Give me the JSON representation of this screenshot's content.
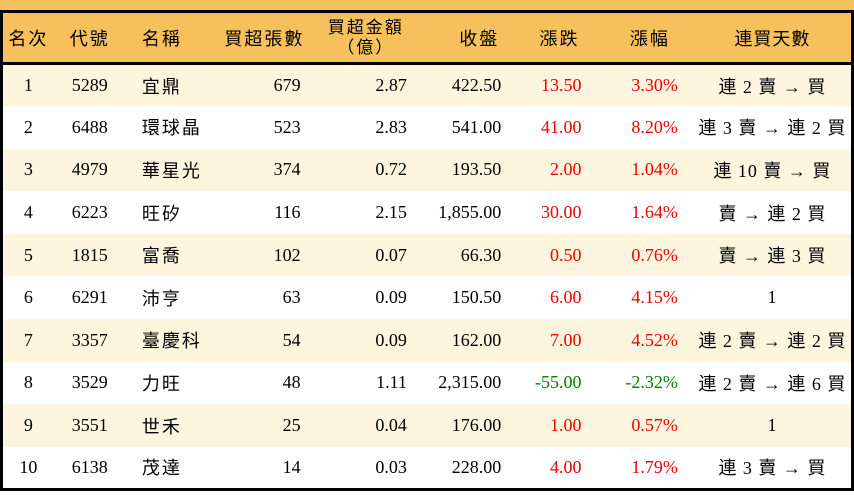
{
  "colors": {
    "header_bg": "#F6C05C",
    "row_alt_bg": "#FDF5DE",
    "row_bg": "#FFFFFF",
    "border": "#000000",
    "up_red": "#EE0000",
    "down_green": "#008000",
    "text": "#000000"
  },
  "table": {
    "headers": {
      "rank": "名次",
      "code": "代號",
      "name": "名稱",
      "volume": "買超張數",
      "amount_line1": "買超金額",
      "amount_line2": "（億）",
      "close": "收盤",
      "change": "漲跌",
      "change_pct": "漲幅",
      "streak": "連買天數"
    }
  },
  "chart_data": {
    "type": "table",
    "title": "",
    "columns": [
      "名次",
      "代號",
      "名稱",
      "買超張數",
      "買超金額（億）",
      "收盤",
      "漲跌",
      "漲幅",
      "連買天數"
    ],
    "rows": [
      {
        "rank": "1",
        "code": "5289",
        "name": "宜鼎",
        "volume": "679",
        "amount": "2.87",
        "close": "422.50",
        "change": "13.50",
        "change_pct": "3.30%",
        "streak": "連 2 賣 → 買",
        "direction": "up"
      },
      {
        "rank": "2",
        "code": "6488",
        "name": "環球晶",
        "volume": "523",
        "amount": "2.83",
        "close": "541.00",
        "change": "41.00",
        "change_pct": "8.20%",
        "streak": "連 3 賣 → 連 2 買",
        "direction": "up"
      },
      {
        "rank": "3",
        "code": "4979",
        "name": "華星光",
        "volume": "374",
        "amount": "0.72",
        "close": "193.50",
        "change": "2.00",
        "change_pct": "1.04%",
        "streak": "連 10 賣 → 買",
        "direction": "up"
      },
      {
        "rank": "4",
        "code": "6223",
        "name": "旺矽",
        "volume": "116",
        "amount": "2.15",
        "close": "1,855.00",
        "change": "30.00",
        "change_pct": "1.64%",
        "streak": "賣 → 連 2 買",
        "direction": "up"
      },
      {
        "rank": "5",
        "code": "1815",
        "name": "富喬",
        "volume": "102",
        "amount": "0.07",
        "close": "66.30",
        "change": "0.50",
        "change_pct": "0.76%",
        "streak": "賣 → 連 3 買",
        "direction": "up"
      },
      {
        "rank": "6",
        "code": "6291",
        "name": "沛亨",
        "volume": "63",
        "amount": "0.09",
        "close": "150.50",
        "change": "6.00",
        "change_pct": "4.15%",
        "streak": "1",
        "direction": "up"
      },
      {
        "rank": "7",
        "code": "3357",
        "name": "臺慶科",
        "volume": "54",
        "amount": "0.09",
        "close": "162.00",
        "change": "7.00",
        "change_pct": "4.52%",
        "streak": "連 2 賣 → 連 2 買",
        "direction": "up"
      },
      {
        "rank": "8",
        "code": "3529",
        "name": "力旺",
        "volume": "48",
        "amount": "1.11",
        "close": "2,315.00",
        "change": "-55.00",
        "change_pct": "-2.32%",
        "streak": "連 2 賣 → 連 6 買",
        "direction": "down"
      },
      {
        "rank": "9",
        "code": "3551",
        "name": "世禾",
        "volume": "25",
        "amount": "0.04",
        "close": "176.00",
        "change": "1.00",
        "change_pct": "0.57%",
        "streak": "1",
        "direction": "up"
      },
      {
        "rank": "10",
        "code": "6138",
        "name": "茂達",
        "volume": "14",
        "amount": "0.03",
        "close": "228.00",
        "change": "4.00",
        "change_pct": "1.79%",
        "streak": "連 3 賣 → 買",
        "direction": "up"
      }
    ]
  }
}
